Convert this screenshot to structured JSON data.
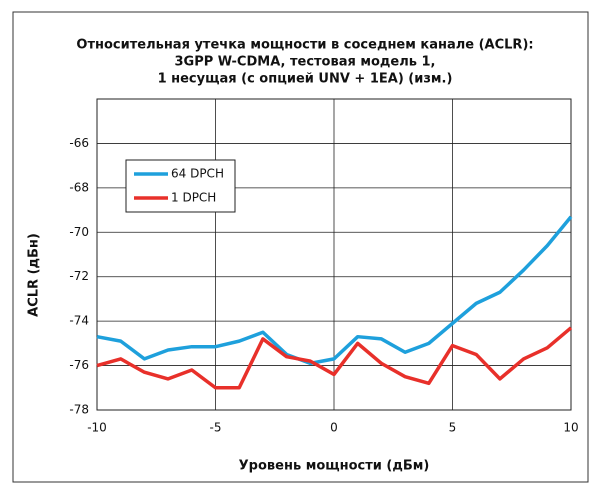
{
  "chart_data": {
    "type": "line",
    "title": [
      "Относительная утечка мощности в соседнем канале (ACLR):",
      "3GPP W-CDMA, тестовая модель 1,",
      "1 несущая (с опцией UNV + 1EA) (изм.)"
    ],
    "x_label": "Уровень мощности (дБм)",
    "y_label": "ACLR (дБн)",
    "x": [
      -10,
      -9,
      -8,
      -7,
      -6,
      -5,
      -4,
      -3,
      -2,
      -1,
      0,
      1,
      2,
      3,
      4,
      5,
      6,
      7,
      8,
      9,
      10
    ],
    "series": [
      {
        "name": "64 DPCH",
        "color": "#1ea0dc",
        "values": [
          -74.7,
          -74.9,
          -75.7,
          -75.3,
          -75.15,
          -75.15,
          -74.9,
          -74.5,
          -75.5,
          -75.9,
          -75.7,
          -74.7,
          -74.8,
          -75.4,
          -75.0,
          -74.1,
          -73.2,
          -72.7,
          -71.7,
          -70.6,
          -69.3
        ]
      },
      {
        "name": "1 DPCH",
        "color": "#e8302a",
        "values": [
          -76.0,
          -75.7,
          -76.3,
          -76.6,
          -76.2,
          -77.0,
          -77.0,
          -74.8,
          -75.6,
          -75.8,
          -76.4,
          -75.0,
          -75.9,
          -76.5,
          -76.8,
          -75.1,
          -75.5,
          -76.6,
          -75.7,
          -75.2,
          -74.3
        ]
      }
    ],
    "xlim": [
      -10,
      10
    ],
    "xticks": [
      -10,
      -5,
      0,
      5,
      10
    ],
    "ylim": [
      -78,
      -64
    ],
    "yticks": [
      -78,
      -76,
      -74,
      -72,
      -70,
      -68,
      -66
    ],
    "grid": true,
    "legend": "upper left"
  }
}
